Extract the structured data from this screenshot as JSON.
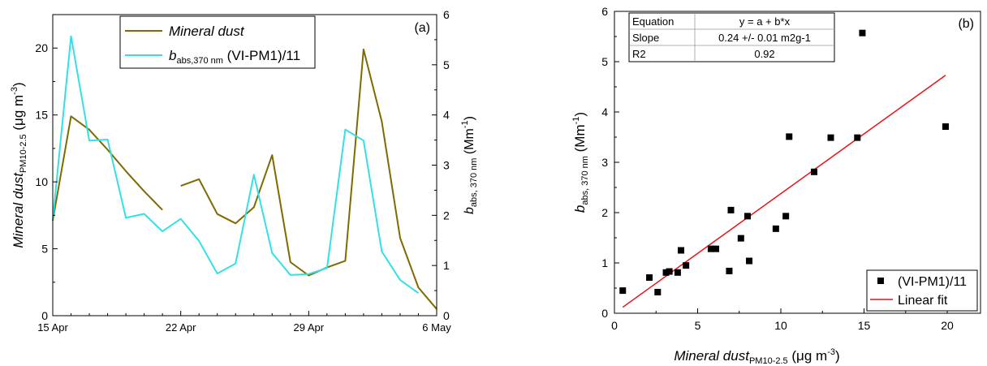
{
  "chart_data": [
    {
      "type": "line",
      "panel_label": "(a)",
      "x_ticks": [
        "15 Apr",
        "22 Apr",
        "29 Apr",
        "6 May"
      ],
      "x_range": [
        "2024-04-15",
        "2024-05-06"
      ],
      "y_left": {
        "label_main": "Mineral dust",
        "label_sub": "PM10-2.5",
        "label_unit_pre": " (μg m",
        "label_unit_sup": "-3",
        "label_unit_post": ")",
        "ylim": [
          0,
          22.5
        ],
        "ticks": [
          "0",
          "5",
          "10",
          "15",
          "20"
        ]
      },
      "y_right": {
        "label_main": "b",
        "label_sub": "abs, 370 nm",
        "label_unit_pre": " (Mm",
        "label_unit_sup": "-1",
        "label_unit_post": ")",
        "ylim": [
          0,
          6
        ],
        "ticks": [
          "0",
          "1",
          "2",
          "3",
          "4",
          "5",
          "6"
        ]
      },
      "legend": [
        {
          "main": "Mineral dust",
          "sub": "",
          "rest": "",
          "color": "#7f6a00",
          "italic": true
        },
        {
          "main": "b",
          "sub": "abs,370 nm",
          "rest": " (VI-PM1)/11",
          "color": "#33e0e8",
          "italic": false
        }
      ],
      "series": [
        {
          "name": "Mineral dust",
          "color": "#7f6a00",
          "segments": [
            [
              [
                "2024-04-15",
                7.1
              ],
              [
                "2024-04-16",
                14.9
              ],
              [
                "2024-04-17",
                13.9
              ],
              [
                "2024-04-18",
                12.4
              ],
              [
                "2024-04-19",
                10.8
              ],
              [
                "2024-04-20",
                9.3
              ],
              [
                "2024-04-21",
                7.9
              ]
            ],
            [
              [
                "2024-04-22",
                9.7
              ],
              [
                "2024-04-23",
                10.2
              ],
              [
                "2024-04-24",
                7.6
              ],
              [
                "2024-04-25",
                6.9
              ],
              [
                "2024-04-26",
                8.1
              ],
              [
                "2024-04-27",
                12.0
              ],
              [
                "2024-04-28",
                4.0
              ],
              [
                "2024-04-29",
                3.0
              ],
              [
                "2024-04-30",
                3.6
              ],
              [
                "2024-05-01",
                4.1
              ],
              [
                "2024-05-02",
                19.9
              ],
              [
                "2024-05-03",
                14.5
              ],
              [
                "2024-05-04",
                5.8
              ],
              [
                "2024-05-05",
                2.1
              ],
              [
                "2024-05-06",
                0.5
              ]
            ]
          ]
        },
        {
          "name": "b abs,370 nm (VI-PM1)/11",
          "color": "#33e0e8",
          "axis": "right",
          "segments": [
            [
              [
                "2024-04-15",
                1.91
              ],
              [
                "2024-04-16",
                5.57
              ],
              [
                "2024-04-17",
                3.49
              ],
              [
                "2024-04-18",
                3.51
              ],
              [
                "2024-04-19",
                1.95
              ],
              [
                "2024-04-20",
                2.03
              ],
              [
                "2024-04-21",
                1.68
              ],
              [
                "2024-04-22",
                1.93
              ],
              [
                "2024-04-23",
                1.49
              ],
              [
                "2024-04-24",
                0.84
              ],
              [
                "2024-04-25",
                1.04
              ],
              [
                "2024-04-26",
                2.81
              ],
              [
                "2024-04-27",
                1.25
              ],
              [
                "2024-04-28",
                0.81
              ],
              [
                "2024-04-29",
                0.83
              ],
              [
                "2024-04-30",
                0.95
              ],
              [
                "2024-05-01",
                3.71
              ],
              [
                "2024-05-02",
                3.49
              ],
              [
                "2024-05-03",
                1.28
              ],
              [
                "2024-05-04",
                0.71
              ],
              [
                "2024-05-05",
                0.45
              ]
            ]
          ]
        }
      ]
    },
    {
      "type": "scatter",
      "panel_label": "(b)",
      "xlim": [
        0,
        22
      ],
      "ylim": [
        0,
        6
      ],
      "x_ticks": [
        "0",
        "5",
        "10",
        "15",
        "20"
      ],
      "y_ticks": [
        "0",
        "1",
        "2",
        "3",
        "4",
        "5",
        "6"
      ],
      "xlabel": {
        "main": "Mineral dust",
        "sub": "PM10-2.5",
        "unit_pre": " (μg m",
        "unit_sup": "-3",
        "unit_post": ")"
      },
      "ylabel": {
        "main": "b",
        "sub": "abs, 370 nm",
        "unit_pre": " (Mm",
        "unit_sup": "-1",
        "unit_post": ")"
      },
      "fit_table": [
        [
          "Equation",
          "y = a + b*x"
        ],
        [
          "Slope",
          "0.24 +/- 0.01 m2g-1"
        ],
        [
          "R2",
          "0.92"
        ]
      ],
      "legend": [
        {
          "label": "(VI-PM1)/11",
          "marker": "square",
          "color": "#000000"
        },
        {
          "label": "Linear fit",
          "marker": "line",
          "color": "#e8141a"
        }
      ],
      "points": [
        {
          "x": 0.5,
          "y": 0.45
        },
        {
          "x": 2.1,
          "y": 0.71
        },
        {
          "x": 2.6,
          "y": 0.42
        },
        {
          "x": 3.1,
          "y": 0.81
        },
        {
          "x": 3.3,
          "y": 0.83
        },
        {
          "x": 3.8,
          "y": 0.81
        },
        {
          "x": 4.0,
          "y": 1.25
        },
        {
          "x": 4.3,
          "y": 0.95
        },
        {
          "x": 5.8,
          "y": 1.28
        },
        {
          "x": 6.1,
          "y": 1.28
        },
        {
          "x": 6.9,
          "y": 0.84
        },
        {
          "x": 7.0,
          "y": 2.05
        },
        {
          "x": 7.6,
          "y": 1.49
        },
        {
          "x": 8.0,
          "y": 1.93
        },
        {
          "x": 8.1,
          "y": 1.04
        },
        {
          "x": 9.7,
          "y": 1.68
        },
        {
          "x": 10.3,
          "y": 1.93
        },
        {
          "x": 10.5,
          "y": 3.51
        },
        {
          "x": 12.0,
          "y": 2.81
        },
        {
          "x": 13.0,
          "y": 3.49
        },
        {
          "x": 14.6,
          "y": 3.49
        },
        {
          "x": 14.9,
          "y": 5.57
        },
        {
          "x": 19.9,
          "y": 3.71
        }
      ],
      "fit_line": {
        "x": [
          0.5,
          19.9
        ],
        "y": [
          0.12,
          4.73
        ],
        "color": "#e8141a"
      }
    }
  ]
}
